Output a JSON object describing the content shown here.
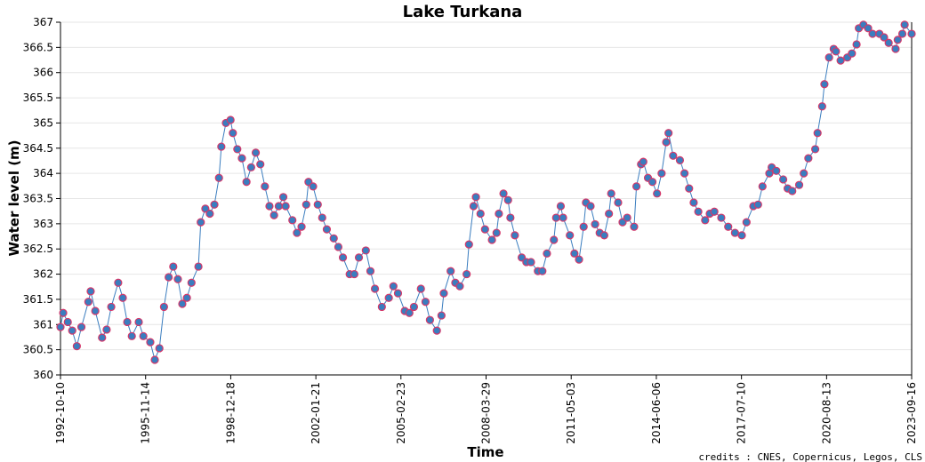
{
  "chart_data": {
    "type": "line",
    "title": "Lake Turkana",
    "x_label": "Time",
    "y_label": "Water level (m)",
    "credits": "credits : CNES, Copernicus, Legos, CLS",
    "color": "#3a7dbf",
    "grid": true,
    "xlim": [
      "1992-10-10",
      "2023-09-16"
    ],
    "xticks": [
      "1992-10-10",
      "1995-11-14",
      "1998-12-18",
      "2002-01-21",
      "2005-02-23",
      "2008-03-29",
      "2011-05-03",
      "2014-06-06",
      "2017-07-10",
      "2020-08-13",
      "2023-09-16"
    ],
    "ylim": [
      360,
      367
    ],
    "yticks": [
      360,
      360.5,
      361,
      361.5,
      362,
      362.5,
      363,
      363.5,
      364,
      364.5,
      365,
      365.5,
      366,
      366.5,
      367
    ],
    "x": [
      "1992-10-10",
      "1992-11-15",
      "1993-01-15",
      "1993-03-15",
      "1993-05-15",
      "1993-07-15",
      "1993-10-15",
      "1993-11-15",
      "1994-01-15",
      "1994-04-15",
      "1994-06-15",
      "1994-08-15",
      "1994-11-15",
      "1995-01-15",
      "1995-03-15",
      "1995-05-15",
      "1995-08-15",
      "1995-10-15",
      "1996-01-15",
      "1996-03-15",
      "1996-05-15",
      "1996-07-15",
      "1996-09-15",
      "1996-11-15",
      "1997-01-15",
      "1997-03-15",
      "1997-05-15",
      "1997-07-15",
      "1997-10-15",
      "1997-11-15",
      "1998-01-15",
      "1998-03-15",
      "1998-05-15",
      "1998-07-15",
      "1998-08-15",
      "1998-10-15",
      "1998-12-15",
      "1999-01-15",
      "1999-03-15",
      "1999-05-15",
      "1999-07-15",
      "1999-09-15",
      "1999-11-15",
      "2000-01-15",
      "2000-03-15",
      "2000-05-15",
      "2000-07-15",
      "2000-09-15",
      "2000-11-15",
      "2000-12-15",
      "2001-03-15",
      "2001-05-15",
      "2001-07-15",
      "2001-09-15",
      "2001-10-15",
      "2001-12-15",
      "2002-02-15",
      "2002-04-15",
      "2002-06-15",
      "2002-09-15",
      "2002-11-15",
      "2003-01-15",
      "2003-04-15",
      "2003-06-15",
      "2003-08-15",
      "2003-11-15",
      "2004-01-15",
      "2004-03-15",
      "2004-06-15",
      "2004-09-15",
      "2004-11-15",
      "2005-01-15",
      "2005-04-15",
      "2005-06-15",
      "2005-08-15",
      "2005-11-15",
      "2006-01-15",
      "2006-03-15",
      "2006-06-15",
      "2006-08-15",
      "2006-09-15",
      "2006-12-15",
      "2007-02-15",
      "2007-04-15",
      "2007-07-15",
      "2007-08-15",
      "2007-10-15",
      "2007-11-15",
      "2008-01-15",
      "2008-03-15",
      "2008-06-15",
      "2008-08-15",
      "2008-09-15",
      "2008-11-15",
      "2009-01-15",
      "2009-02-15",
      "2009-04-15",
      "2009-07-15",
      "2009-09-15",
      "2009-11-15",
      "2010-02-15",
      "2010-04-15",
      "2010-06-15",
      "2010-09-15",
      "2010-10-15",
      "2010-12-15",
      "2011-01-15",
      "2011-04-15",
      "2011-06-15",
      "2011-08-15",
      "2011-10-15",
      "2011-11-15",
      "2012-01-15",
      "2012-03-15",
      "2012-05-15",
      "2012-07-15",
      "2012-09-15",
      "2012-10-15",
      "2013-01-15",
      "2013-03-15",
      "2013-05-15",
      "2013-08-15",
      "2013-09-15",
      "2013-11-15",
      "2013-12-15",
      "2014-02-15",
      "2014-04-15",
      "2014-06-15",
      "2014-08-15",
      "2014-10-15",
      "2014-11-15",
      "2015-01-15",
      "2015-04-15",
      "2015-06-15",
      "2015-08-15",
      "2015-10-15",
      "2015-12-15",
      "2016-03-15",
      "2016-05-15",
      "2016-07-15",
      "2016-10-15",
      "2017-01-15",
      "2017-04-15",
      "2017-07-15",
      "2017-09-15",
      "2017-12-15",
      "2018-02-15",
      "2018-04-15",
      "2018-07-15",
      "2018-08-15",
      "2018-10-15",
      "2019-01-15",
      "2019-03-15",
      "2019-05-15",
      "2019-08-15",
      "2019-10-15",
      "2019-12-15",
      "2020-03-15",
      "2020-04-15",
      "2020-06-15",
      "2020-07-15",
      "2020-09-15",
      "2020-11-15",
      "2020-12-15",
      "2021-02-15",
      "2021-05-15",
      "2021-07-15",
      "2021-09-15",
      "2021-10-15",
      "2021-12-15",
      "2022-02-15",
      "2022-04-15",
      "2022-07-15",
      "2022-09-15",
      "2022-11-15",
      "2023-02-15",
      "2023-03-15",
      "2023-05-15",
      "2023-06-15",
      "2023-09-16"
    ],
    "values": [
      360.95,
      361.23,
      361.05,
      360.88,
      360.57,
      360.95,
      361.45,
      361.66,
      361.27,
      360.74,
      360.9,
      361.35,
      361.83,
      361.53,
      361.05,
      360.77,
      361.05,
      360.77,
      360.65,
      360.3,
      360.53,
      361.35,
      361.94,
      362.15,
      361.9,
      361.41,
      361.53,
      361.83,
      362.15,
      363.03,
      363.3,
      363.2,
      363.38,
      363.91,
      364.53,
      365.0,
      365.06,
      364.8,
      364.48,
      364.3,
      363.83,
      364.12,
      364.41,
      364.18,
      363.74,
      363.35,
      363.17,
      363.35,
      363.53,
      363.35,
      363.07,
      362.82,
      362.94,
      363.38,
      363.83,
      363.74,
      363.38,
      363.12,
      362.89,
      362.71,
      362.54,
      362.33,
      362.0,
      362.0,
      362.33,
      362.47,
      362.06,
      361.71,
      361.35,
      361.53,
      361.76,
      361.62,
      361.27,
      361.23,
      361.35,
      361.71,
      361.45,
      361.09,
      360.88,
      361.18,
      361.62,
      362.06,
      361.83,
      361.76,
      362.0,
      362.59,
      363.35,
      363.53,
      363.2,
      362.89,
      362.68,
      362.82,
      363.2,
      363.6,
      363.47,
      363.12,
      362.77,
      362.33,
      362.24,
      362.24,
      362.06,
      362.06,
      362.41,
      362.68,
      363.12,
      363.35,
      363.12,
      362.77,
      362.41,
      362.29,
      362.94,
      363.42,
      363.35,
      362.99,
      362.82,
      362.77,
      363.2,
      363.6,
      363.42,
      363.03,
      363.12,
      362.94,
      363.74,
      364.18,
      364.23,
      363.91,
      363.83,
      363.6,
      364.0,
      364.62,
      364.8,
      364.35,
      364.26,
      364.0,
      363.7,
      363.42,
      363.24,
      363.07,
      363.2,
      363.24,
      363.12,
      362.94,
      362.82,
      362.77,
      363.03,
      363.35,
      363.38,
      363.74,
      364.0,
      364.12,
      364.05,
      363.88,
      363.7,
      363.65,
      363.77,
      364.0,
      364.3,
      364.48,
      364.8,
      365.33,
      365.77,
      366.3,
      366.47,
      366.42,
      366.24,
      366.3,
      366.38,
      366.56,
      366.88,
      366.95,
      366.88,
      366.77,
      366.77,
      366.7,
      366.59,
      366.47,
      366.65,
      366.77,
      366.95,
      366.77
    ]
  }
}
